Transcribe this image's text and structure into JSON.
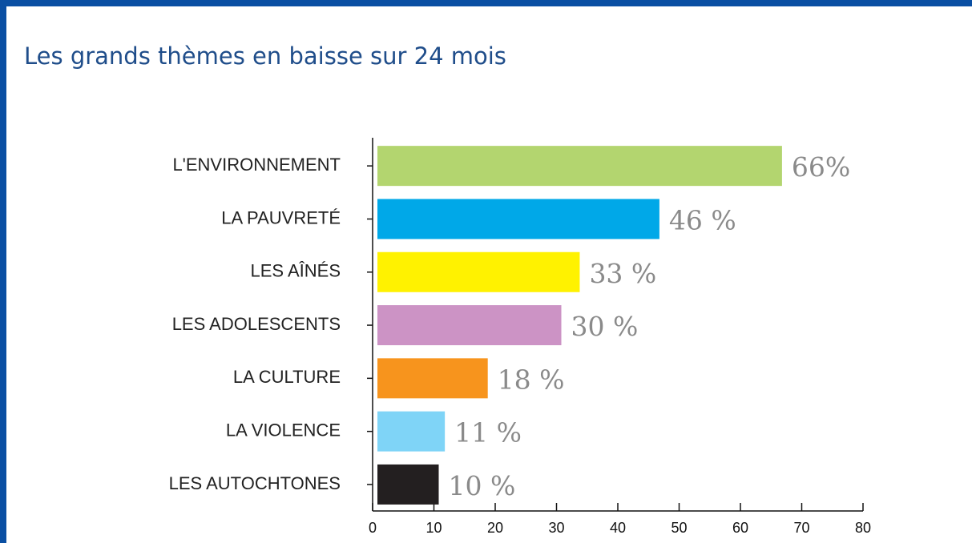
{
  "chart_data": {
    "type": "bar",
    "orientation": "horizontal",
    "title": "Les grands thèmes en baisse sur 24 mois",
    "categories": [
      "L'ENVIRONNEMENT",
      "LA PAUVRETÉ",
      "LES AÎNÉS",
      "LES ADOLESCENTS",
      "LA CULTURE",
      "LA VIOLENCE",
      "LES AUTOCHTONES"
    ],
    "values": [
      66,
      46,
      33,
      30,
      18,
      11,
      10
    ],
    "value_labels": [
      "66%",
      "46 %",
      "33 %",
      "30 %",
      "18 %",
      "11 %",
      "10 %"
    ],
    "colors": [
      "#b3d56f",
      "#00a8e8",
      "#fff200",
      "#cc93c5",
      "#f7941d",
      "#7fd4f7",
      "#231f20"
    ],
    "xlim": [
      0,
      80
    ],
    "xticks": [
      0,
      10,
      20,
      30,
      40,
      50,
      60,
      70,
      80
    ],
    "grid": false
  }
}
